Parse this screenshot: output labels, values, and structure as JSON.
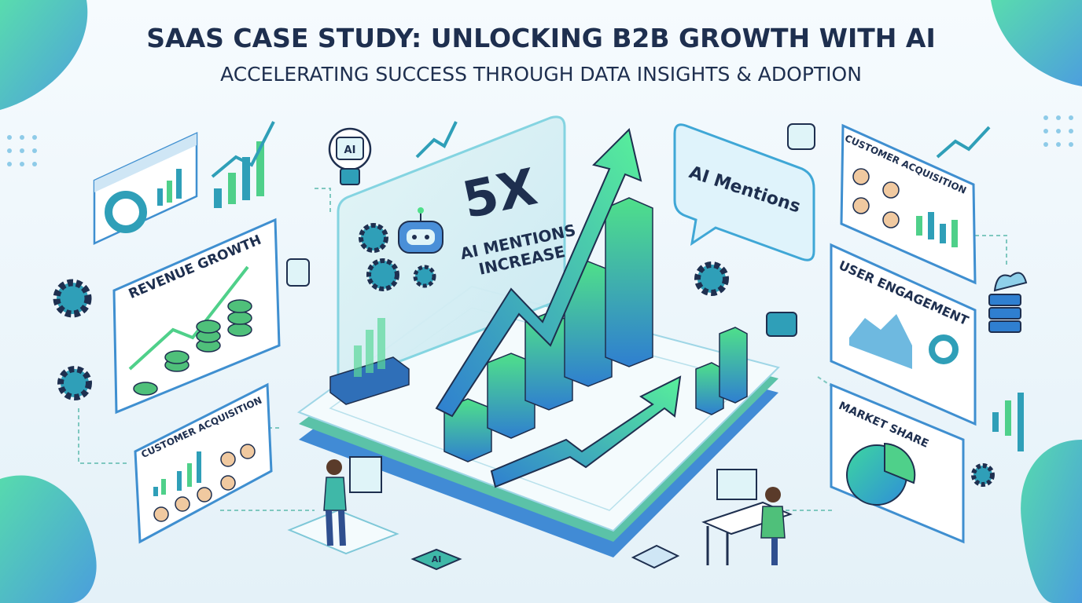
{
  "header": {
    "title": "SAAS CASE STUDY: UNLOCKING B2B GROWTH WITH AI",
    "subtitle": "ACCELERATING SUCCESS THROUGH DATA INSIGHTS & ADOPTION"
  },
  "center": {
    "multiplier": "5X",
    "caption_line1": "AI MENTIONS",
    "caption_line2": "INCREASE"
  },
  "speech_bubble": {
    "label": "AI Mentions"
  },
  "icons": {
    "bulb": "AI",
    "chip": "AI"
  },
  "panels": {
    "revenue_growth": "REVENUE GROWTH",
    "customer_acquisition_left": "CUSTOMER ACQUISITION",
    "customer_acquisition_right": "CUSTOMER ACQUISITION",
    "user_engagement": "USER ENGAGEMENT",
    "market_share": "MARKET SHARE"
  }
}
